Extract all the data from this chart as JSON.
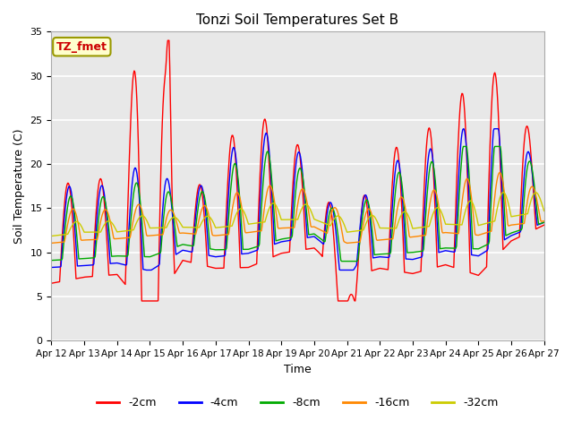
{
  "title": "Tonzi Soil Temperatures Set B",
  "xlabel": "Time",
  "ylabel": "Soil Temperature (C)",
  "ylim": [
    0,
    35
  ],
  "yticks": [
    0,
    5,
    10,
    15,
    20,
    25,
    30,
    35
  ],
  "x_labels": [
    "Apr 12",
    "Apr 13",
    "Apr 14",
    "Apr 15",
    "Apr 16",
    "Apr 17",
    "Apr 18",
    "Apr 19",
    "Apr 20",
    "Apr 21",
    "Apr 22",
    "Apr 23",
    "Apr 24",
    "Apr 25",
    "Apr 26",
    "Apr 27"
  ],
  "annotation_text": "TZ_fmet",
  "annotation_color": "#cc0000",
  "annotation_bg": "#ffffcc",
  "annotation_border": "#999900",
  "series_colors": [
    "#ff0000",
    "#0000ff",
    "#00aa00",
    "#ff8800",
    "#cccc00"
  ],
  "series_labels": [
    "-2cm",
    "-4cm",
    "-8cm",
    "-16cm",
    "-32cm"
  ],
  "plot_bg": "#e8e8e8",
  "grid_color": "#ffffff",
  "n_points": 721
}
